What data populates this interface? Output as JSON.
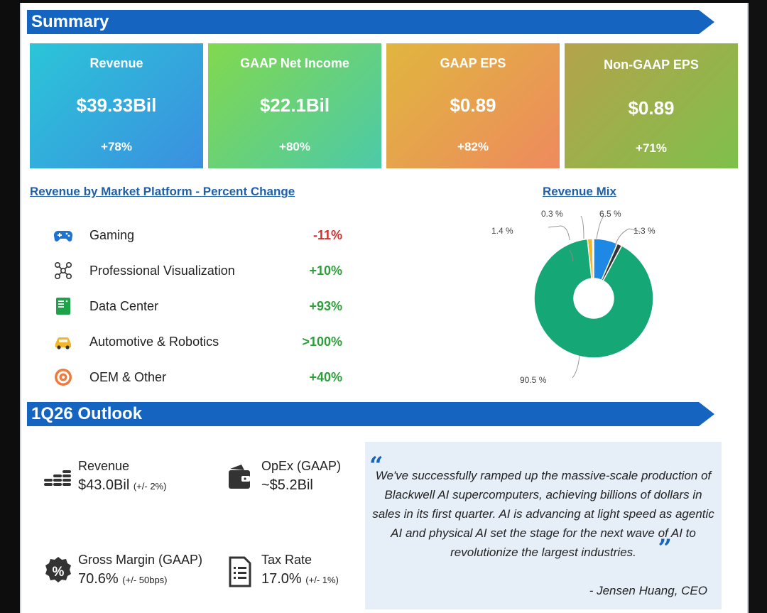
{
  "summary": {
    "title": "Summary",
    "cards": [
      {
        "title": "Revenue",
        "value": "$39.33Bil",
        "change": "+78%"
      },
      {
        "title": "GAAP Net Income",
        "value": "$22.1Bil",
        "change": "+80%"
      },
      {
        "title": "GAAP EPS",
        "value": "$0.89",
        "change": "+82%"
      },
      {
        "title": "Non-GAAP EPS",
        "value": "$0.89",
        "change": "+71%"
      }
    ]
  },
  "platforms": {
    "title": "Revenue by Market Platform - Percent Change",
    "items": [
      {
        "name": "Gaming",
        "change": "-11%",
        "icon": "gamepad-icon"
      },
      {
        "name": "Professional Visualization",
        "change": "+10%",
        "icon": "network-icon"
      },
      {
        "name": "Data Center",
        "change": "+93%",
        "icon": "server-icon"
      },
      {
        "name": "Automotive & Robotics",
        "change": ">100%",
        "icon": "car-icon"
      },
      {
        "name": "OEM & Other",
        "change": "+40%",
        "icon": "target-icon"
      }
    ]
  },
  "revenue_mix": {
    "title": "Revenue Mix",
    "slices": [
      {
        "label": "90.5 %",
        "value": 90.5,
        "color": "#16a777"
      },
      {
        "label": "1.4 %",
        "value": 1.4,
        "color": "#f2b52b"
      },
      {
        "label": "0.3 %",
        "value": 0.3,
        "color": "#f07a3c"
      },
      {
        "label": "6.5 %",
        "value": 6.5,
        "color": "#1e88e5"
      },
      {
        "label": "1.3 %",
        "value": 1.3,
        "color": "#333333"
      }
    ]
  },
  "outlook": {
    "title": "1Q26 Outlook",
    "items": [
      {
        "label": "Revenue",
        "value": "$43.0Bil",
        "note": "(+/- 2%)",
        "icon": "coins-icon"
      },
      {
        "label": "OpEx (GAAP)",
        "value": "~$5.2Bil",
        "note": "",
        "icon": "wallet-icon"
      },
      {
        "label": "Gross Margin (GAAP)",
        "value": "70.6%",
        "note": "(+/- 50bps)",
        "icon": "percent-badge-icon"
      },
      {
        "label": "Tax Rate",
        "value": "17.0%",
        "note": "(+/- 1%)",
        "icon": "document-icon"
      }
    ],
    "quote": {
      "text": "We've successfully ramped up the massive-scale production of Blackwell AI supercomputers, achieving billions of dollars in sales in its first quarter. AI is advancing at light speed as agentic AI and physical AI set the stage for the next wave of AI to revolutionize the largest industries.",
      "author": "- Jensen Huang, CEO"
    }
  },
  "colors": {
    "accent": "#1565c0",
    "positive": "#2e9e3a",
    "negative": "#d32f2f"
  }
}
